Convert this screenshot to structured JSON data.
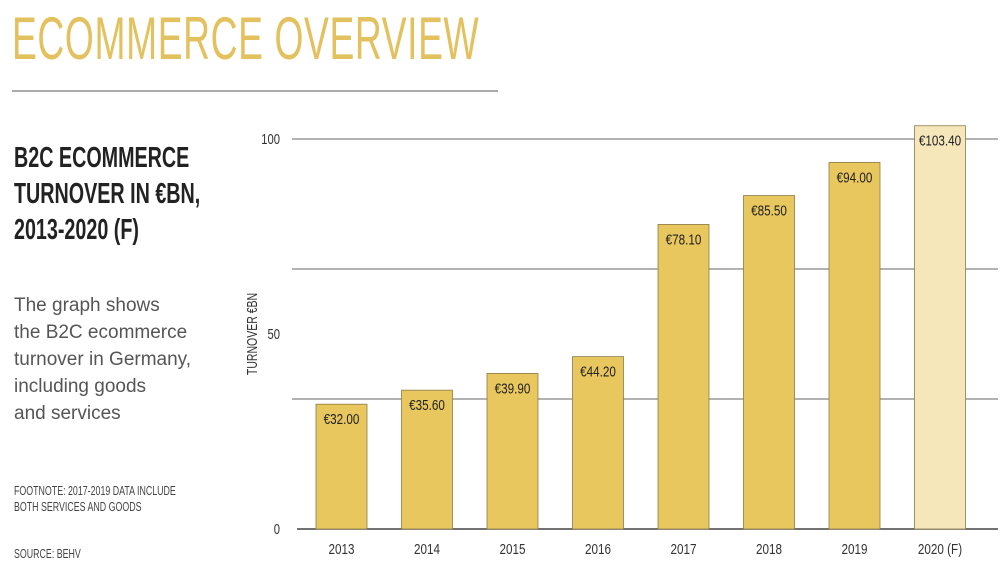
{
  "header": {
    "title": "ECOMMERCE OVERVIEW"
  },
  "sidebar": {
    "subtitle_lines": [
      "B2C ECOMMERCE",
      "TURNOVER IN €BN,",
      "2013-2020 (F)"
    ],
    "description_lines": [
      "The graph shows",
      "the B2C ecommerce",
      "turnover in Germany,",
      "including goods",
      "and services"
    ],
    "footnote_lines": [
      "FOOTNOTE: 2017-2019 DATA INCLUDE",
      "BOTH SERVICES AND GOODS"
    ],
    "source": "SOURCE: BEHV"
  },
  "chart_data": {
    "type": "bar",
    "title": "",
    "xlabel": "",
    "ylabel": "TURNOVER €BN",
    "ylim": [
      0,
      100
    ],
    "yticks": [
      0,
      50,
      100
    ],
    "grid": true,
    "categories": [
      "2013",
      "2014",
      "2015",
      "2016",
      "2017",
      "2018",
      "2019",
      "2020 (F)"
    ],
    "values": [
      32.0,
      35.6,
      39.9,
      44.2,
      78.1,
      85.5,
      94.0,
      103.4
    ],
    "data_labels": [
      "€32.00",
      "€35.60",
      "€39.90",
      "€44.20",
      "€78.10",
      "€85.50",
      "€94.00",
      "€103.40"
    ],
    "forecast": [
      false,
      false,
      false,
      false,
      false,
      false,
      false,
      true
    ],
    "colors": {
      "bar": "#e9c75f",
      "forecast_bar": "#f6e7bb",
      "bar_border": "#8a7a4a",
      "grid": "#999999"
    }
  }
}
